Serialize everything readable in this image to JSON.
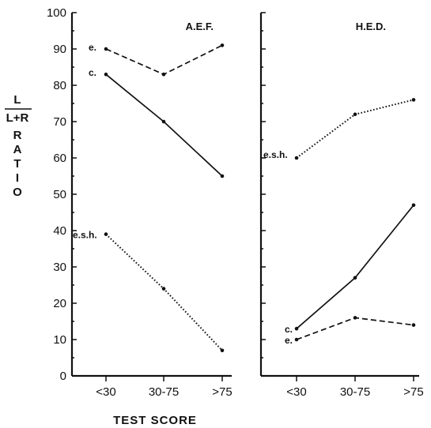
{
  "chart_data": [
    {
      "type": "line",
      "title": "A.E.F.",
      "categories": [
        "<30",
        "30-75",
        ">75"
      ],
      "ylim": [
        0,
        100
      ],
      "yticks": [
        0,
        10,
        20,
        30,
        40,
        50,
        60,
        70,
        80,
        90,
        100
      ],
      "series": [
        {
          "name": "e.",
          "style": "dashed",
          "values": [
            90,
            83,
            91
          ]
        },
        {
          "name": "c.",
          "style": "solid",
          "values": [
            83,
            70,
            55
          ]
        },
        {
          "name": "e.s.h.",
          "style": "dotted",
          "values": [
            39,
            24,
            7
          ]
        }
      ]
    },
    {
      "type": "line",
      "title": "H.E.D.",
      "categories": [
        "<30",
        "30-75",
        ">75"
      ],
      "ylim": [
        0,
        100
      ],
      "series": [
        {
          "name": "e.s.h.",
          "style": "dotted",
          "values": [
            60,
            72,
            76
          ]
        },
        {
          "name": "c.",
          "style": "solid",
          "values": [
            13,
            27,
            47
          ]
        },
        {
          "name": "e.",
          "style": "dashed",
          "values": [
            10,
            16,
            14
          ]
        }
      ]
    }
  ],
  "y_axis_label": {
    "numerator": "L",
    "denominator": "L+R",
    "word": "RATIO"
  },
  "x_axis_label": "TEST SCORE"
}
